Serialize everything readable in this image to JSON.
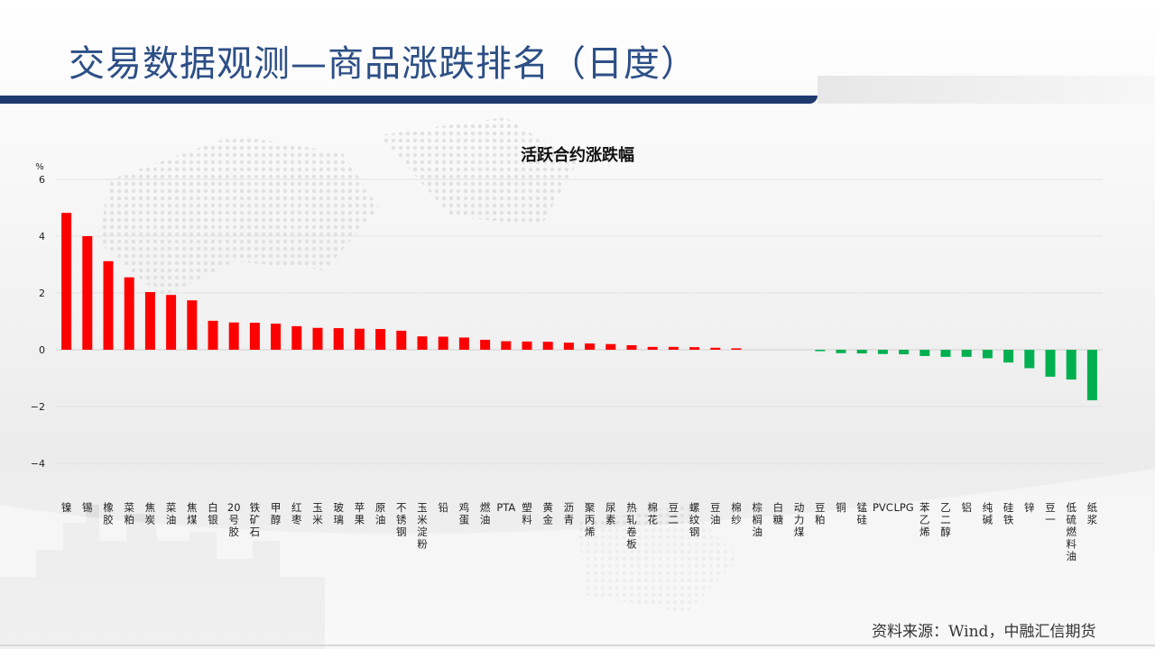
{
  "page": {
    "title": "交易数据观测—商品涨跌排名（日度）",
    "source": "资料来源：Wind，中融汇信期货"
  },
  "colors": {
    "up": "#ff0000",
    "down": "#00b050",
    "title": "#2d4f86",
    "title_bar": "#1f3b6e"
  },
  "chart_data": {
    "type": "bar",
    "title": "活跃合约涨跌幅",
    "ylabel": "%",
    "ylim": [
      -4,
      6
    ],
    "yticks": [
      6,
      4,
      2,
      0,
      -2,
      -4
    ],
    "ytick_labels": [
      "6",
      "4",
      "2",
      "0",
      "−2",
      "−4"
    ],
    "grid": true,
    "categories": [
      "镍",
      "锡",
      "橡胶",
      "菜粕",
      "焦炭",
      "菜油",
      "焦煤",
      "白银",
      "20号胶",
      "铁矿石",
      "甲醇",
      "红枣",
      "玉米",
      "玻璃",
      "苹果",
      "原油",
      "不锈钢",
      "玉米淀粉",
      "铅",
      "鸡蛋",
      "燃油",
      "PTA",
      "塑料",
      "黄金",
      "沥青",
      "聚丙烯",
      "尿素",
      "热轧卷板",
      "棉花",
      "豆二",
      "螺纹钢",
      "豆油",
      "棉纱",
      "棕榈油",
      "白糖",
      "动力煤",
      "豆粕",
      "铜",
      "锰硅",
      "PVC",
      "LPG",
      "苯乙烯",
      "乙二醇",
      "铝",
      "纯碱",
      "硅铁",
      "锌",
      "豆一",
      "低硫燃料油",
      "纸浆"
    ],
    "values": [
      4.82,
      4.0,
      3.12,
      2.55,
      2.03,
      1.93,
      1.74,
      1.02,
      0.96,
      0.95,
      0.92,
      0.83,
      0.77,
      0.76,
      0.74,
      0.73,
      0.67,
      0.47,
      0.46,
      0.43,
      0.35,
      0.3,
      0.29,
      0.28,
      0.25,
      0.22,
      0.2,
      0.16,
      0.1,
      0.1,
      0.09,
      0.07,
      0.05,
      0.0,
      0.0,
      0.0,
      -0.05,
      -0.12,
      -0.13,
      -0.15,
      -0.16,
      -0.22,
      -0.25,
      -0.25,
      -0.3,
      -0.45,
      -0.65,
      -0.95,
      -1.05,
      -1.78
    ]
  }
}
